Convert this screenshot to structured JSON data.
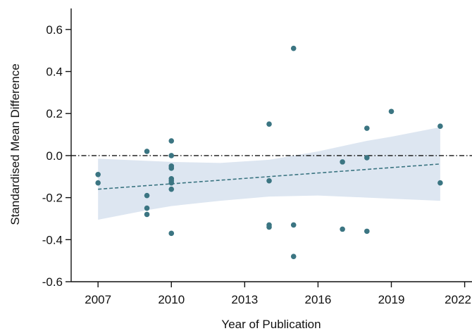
{
  "chart_data": {
    "type": "scatter",
    "title": "",
    "xlabel": "Year of Publication",
    "ylabel": "Standardised Mean Difference",
    "xlim": [
      2005.9,
      2022.3
    ],
    "ylim": [
      -0.6,
      0.7
    ],
    "x_ticks": [
      2007,
      2010,
      2013,
      2016,
      2019,
      2022
    ],
    "x_tick_labels": [
      "2007",
      "2010",
      "2013",
      "2016",
      "2019",
      "2022"
    ],
    "y_ticks": [
      -0.6,
      -0.4,
      -0.2,
      0.0,
      0.2,
      0.4,
      0.6
    ],
    "y_tick_labels": [
      "-0.6",
      "-0.4",
      "-0.2",
      "0.0",
      "0.2",
      "0.4",
      "0.6"
    ],
    "grid": false,
    "reference_line": {
      "y": 0.0,
      "style": "dash-dot",
      "color": "#111111"
    },
    "points": {
      "color": "#3b7582",
      "x": [
        2007,
        2007,
        2009,
        2009,
        2009,
        2009,
        2010,
        2010,
        2010,
        2010,
        2010,
        2010,
        2010,
        2010,
        2010,
        2014,
        2014,
        2014,
        2014,
        2015,
        2015,
        2015,
        2017,
        2017,
        2018,
        2018,
        2018,
        2019,
        2021,
        2021
      ],
      "y": [
        -0.09,
        -0.13,
        0.02,
        -0.19,
        -0.25,
        -0.28,
        0.07,
        0.0,
        -0.05,
        -0.06,
        -0.11,
        -0.13,
        -0.16,
        -0.37,
        -0.12,
        0.15,
        -0.12,
        -0.33,
        -0.34,
        0.51,
        -0.33,
        -0.48,
        -0.03,
        -0.35,
        0.13,
        -0.01,
        -0.36,
        0.21,
        0.14,
        -0.13
      ]
    },
    "regression": {
      "x": [
        2007,
        2021
      ],
      "y": [
        -0.16,
        -0.04
      ],
      "style": "dashed",
      "color": "#3b7582"
    },
    "confidence_band": {
      "color": "#dde6f1",
      "x": [
        2007,
        2009,
        2010,
        2012,
        2014,
        2016,
        2018,
        2019,
        2021
      ],
      "upper": [
        -0.015,
        -0.025,
        -0.03,
        -0.035,
        -0.02,
        0.02,
        0.07,
        0.09,
        0.135
      ],
      "lower": [
        -0.305,
        -0.26,
        -0.24,
        -0.215,
        -0.195,
        -0.19,
        -0.2,
        -0.205,
        -0.215
      ]
    }
  }
}
